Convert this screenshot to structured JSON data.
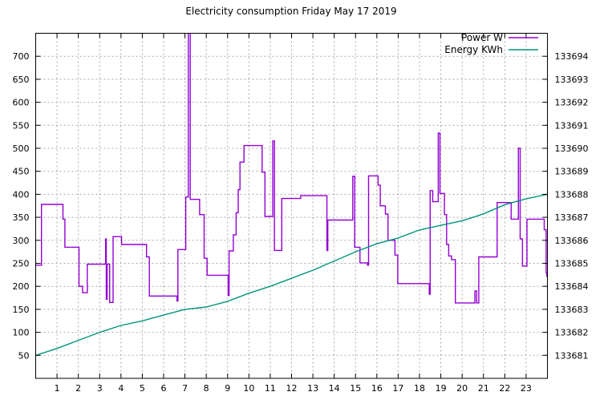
{
  "title": "Electricity consumption Friday May 17 2019",
  "legend": {
    "position": "top-right-inside",
    "entries": [
      {
        "label": "Power W",
        "color": "#9400d3"
      },
      {
        "label": "Energy KWh",
        "color": "#00947e"
      }
    ]
  },
  "chart_data": {
    "type": "line",
    "title": "Electricity consumption Friday May 17 2019",
    "xlabel": "",
    "ylabel_left": "",
    "ylabel_right": "",
    "grid": true,
    "background": "#ffffff",
    "grid_color": "#a8a8a8",
    "border_color": "#000000",
    "axes": {
      "x": {
        "range": [
          0,
          24
        ],
        "ticks": [
          1,
          2,
          3,
          4,
          5,
          6,
          7,
          8,
          9,
          10,
          11,
          12,
          13,
          14,
          15,
          16,
          17,
          18,
          19,
          20,
          21,
          22,
          23
        ]
      },
      "left": {
        "range": [
          0,
          750
        ],
        "ticks": [
          50,
          100,
          150,
          200,
          250,
          300,
          350,
          400,
          450,
          500,
          550,
          600,
          650,
          700
        ]
      },
      "right": {
        "range": [
          133680,
          133695
        ],
        "ticks": [
          133681,
          133682,
          133683,
          133684,
          133685,
          133686,
          133687,
          133688,
          133689,
          133690,
          133691,
          133692,
          133693,
          133694
        ]
      }
    },
    "series": [
      {
        "name": "Power W",
        "style": "step-after",
        "axis": "left",
        "color": "#9400d3",
        "clipped_spike_note": "spike at hour 7.16 exceeds top of plot (>750 W)",
        "points": [
          [
            0,
            246
          ],
          [
            0.27,
            378
          ],
          [
            1.28,
            346
          ],
          [
            1.37,
            285
          ],
          [
            2.03,
            200
          ],
          [
            2.2,
            186
          ],
          [
            2.42,
            248
          ],
          [
            3.28,
            303
          ],
          [
            3.31,
            172
          ],
          [
            3.35,
            248
          ],
          [
            3.47,
            165
          ],
          [
            3.63,
            308
          ],
          [
            4.03,
            291
          ],
          [
            5.2,
            264
          ],
          [
            5.33,
            179
          ],
          [
            6.63,
            168
          ],
          [
            6.67,
            280
          ],
          [
            7.04,
            394
          ],
          [
            7.16,
            900
          ],
          [
            7.25,
            389
          ],
          [
            7.69,
            356
          ],
          [
            7.9,
            261
          ],
          [
            8.04,
            224
          ],
          [
            9.03,
            180
          ],
          [
            9.07,
            277
          ],
          [
            9.27,
            312
          ],
          [
            9.4,
            360
          ],
          [
            9.5,
            410
          ],
          [
            9.58,
            470
          ],
          [
            9.77,
            506
          ],
          [
            10.62,
            448
          ],
          [
            10.75,
            352
          ],
          [
            11.12,
            516
          ],
          [
            11.2,
            278
          ],
          [
            11.54,
            391
          ],
          [
            12.43,
            397
          ],
          [
            13.66,
            278
          ],
          [
            13.7,
            344
          ],
          [
            14.87,
            439
          ],
          [
            14.96,
            285
          ],
          [
            15.21,
            251
          ],
          [
            15.56,
            246
          ],
          [
            15.61,
            440
          ],
          [
            16.06,
            420
          ],
          [
            16.16,
            375
          ],
          [
            16.4,
            357
          ],
          [
            16.52,
            300
          ],
          [
            16.85,
            268
          ],
          [
            16.98,
            206
          ],
          [
            18.46,
            183
          ],
          [
            18.5,
            408
          ],
          [
            18.62,
            384
          ],
          [
            18.88,
            533
          ],
          [
            18.96,
            402
          ],
          [
            19.17,
            356
          ],
          [
            19.27,
            291
          ],
          [
            19.37,
            266
          ],
          [
            19.5,
            258
          ],
          [
            19.68,
            164
          ],
          [
            20.6,
            190
          ],
          [
            20.68,
            164
          ],
          [
            20.78,
            264
          ],
          [
            21.64,
            382
          ],
          [
            22.3,
            346
          ],
          [
            22.64,
            500
          ],
          [
            22.72,
            303
          ],
          [
            22.83,
            244
          ],
          [
            23.04,
            346
          ],
          [
            23.85,
            323
          ],
          [
            23.94,
            230
          ],
          [
            23.97,
            222
          ]
        ]
      },
      {
        "name": "Energy KWh",
        "style": "line",
        "axis": "right",
        "color": "#00947e",
        "points": [
          [
            0,
            133681.0
          ],
          [
            1,
            133681.3
          ],
          [
            2,
            133681.65
          ],
          [
            3,
            133682.0
          ],
          [
            4,
            133682.3
          ],
          [
            5,
            133682.5
          ],
          [
            6,
            133682.75
          ],
          [
            7,
            133683.0
          ],
          [
            8,
            133683.1
          ],
          [
            9,
            133683.35
          ],
          [
            10,
            133683.7
          ],
          [
            11,
            133684.0
          ],
          [
            12,
            133684.35
          ],
          [
            13,
            133684.7
          ],
          [
            14,
            133685.1
          ],
          [
            15,
            133685.5
          ],
          [
            16,
            133685.85
          ],
          [
            17,
            133686.1
          ],
          [
            18,
            133686.45
          ],
          [
            19,
            133686.65
          ],
          [
            20,
            133686.85
          ],
          [
            21,
            133687.15
          ],
          [
            22,
            133687.55
          ],
          [
            23,
            133687.8
          ],
          [
            24,
            133688.0
          ]
        ]
      }
    ]
  }
}
